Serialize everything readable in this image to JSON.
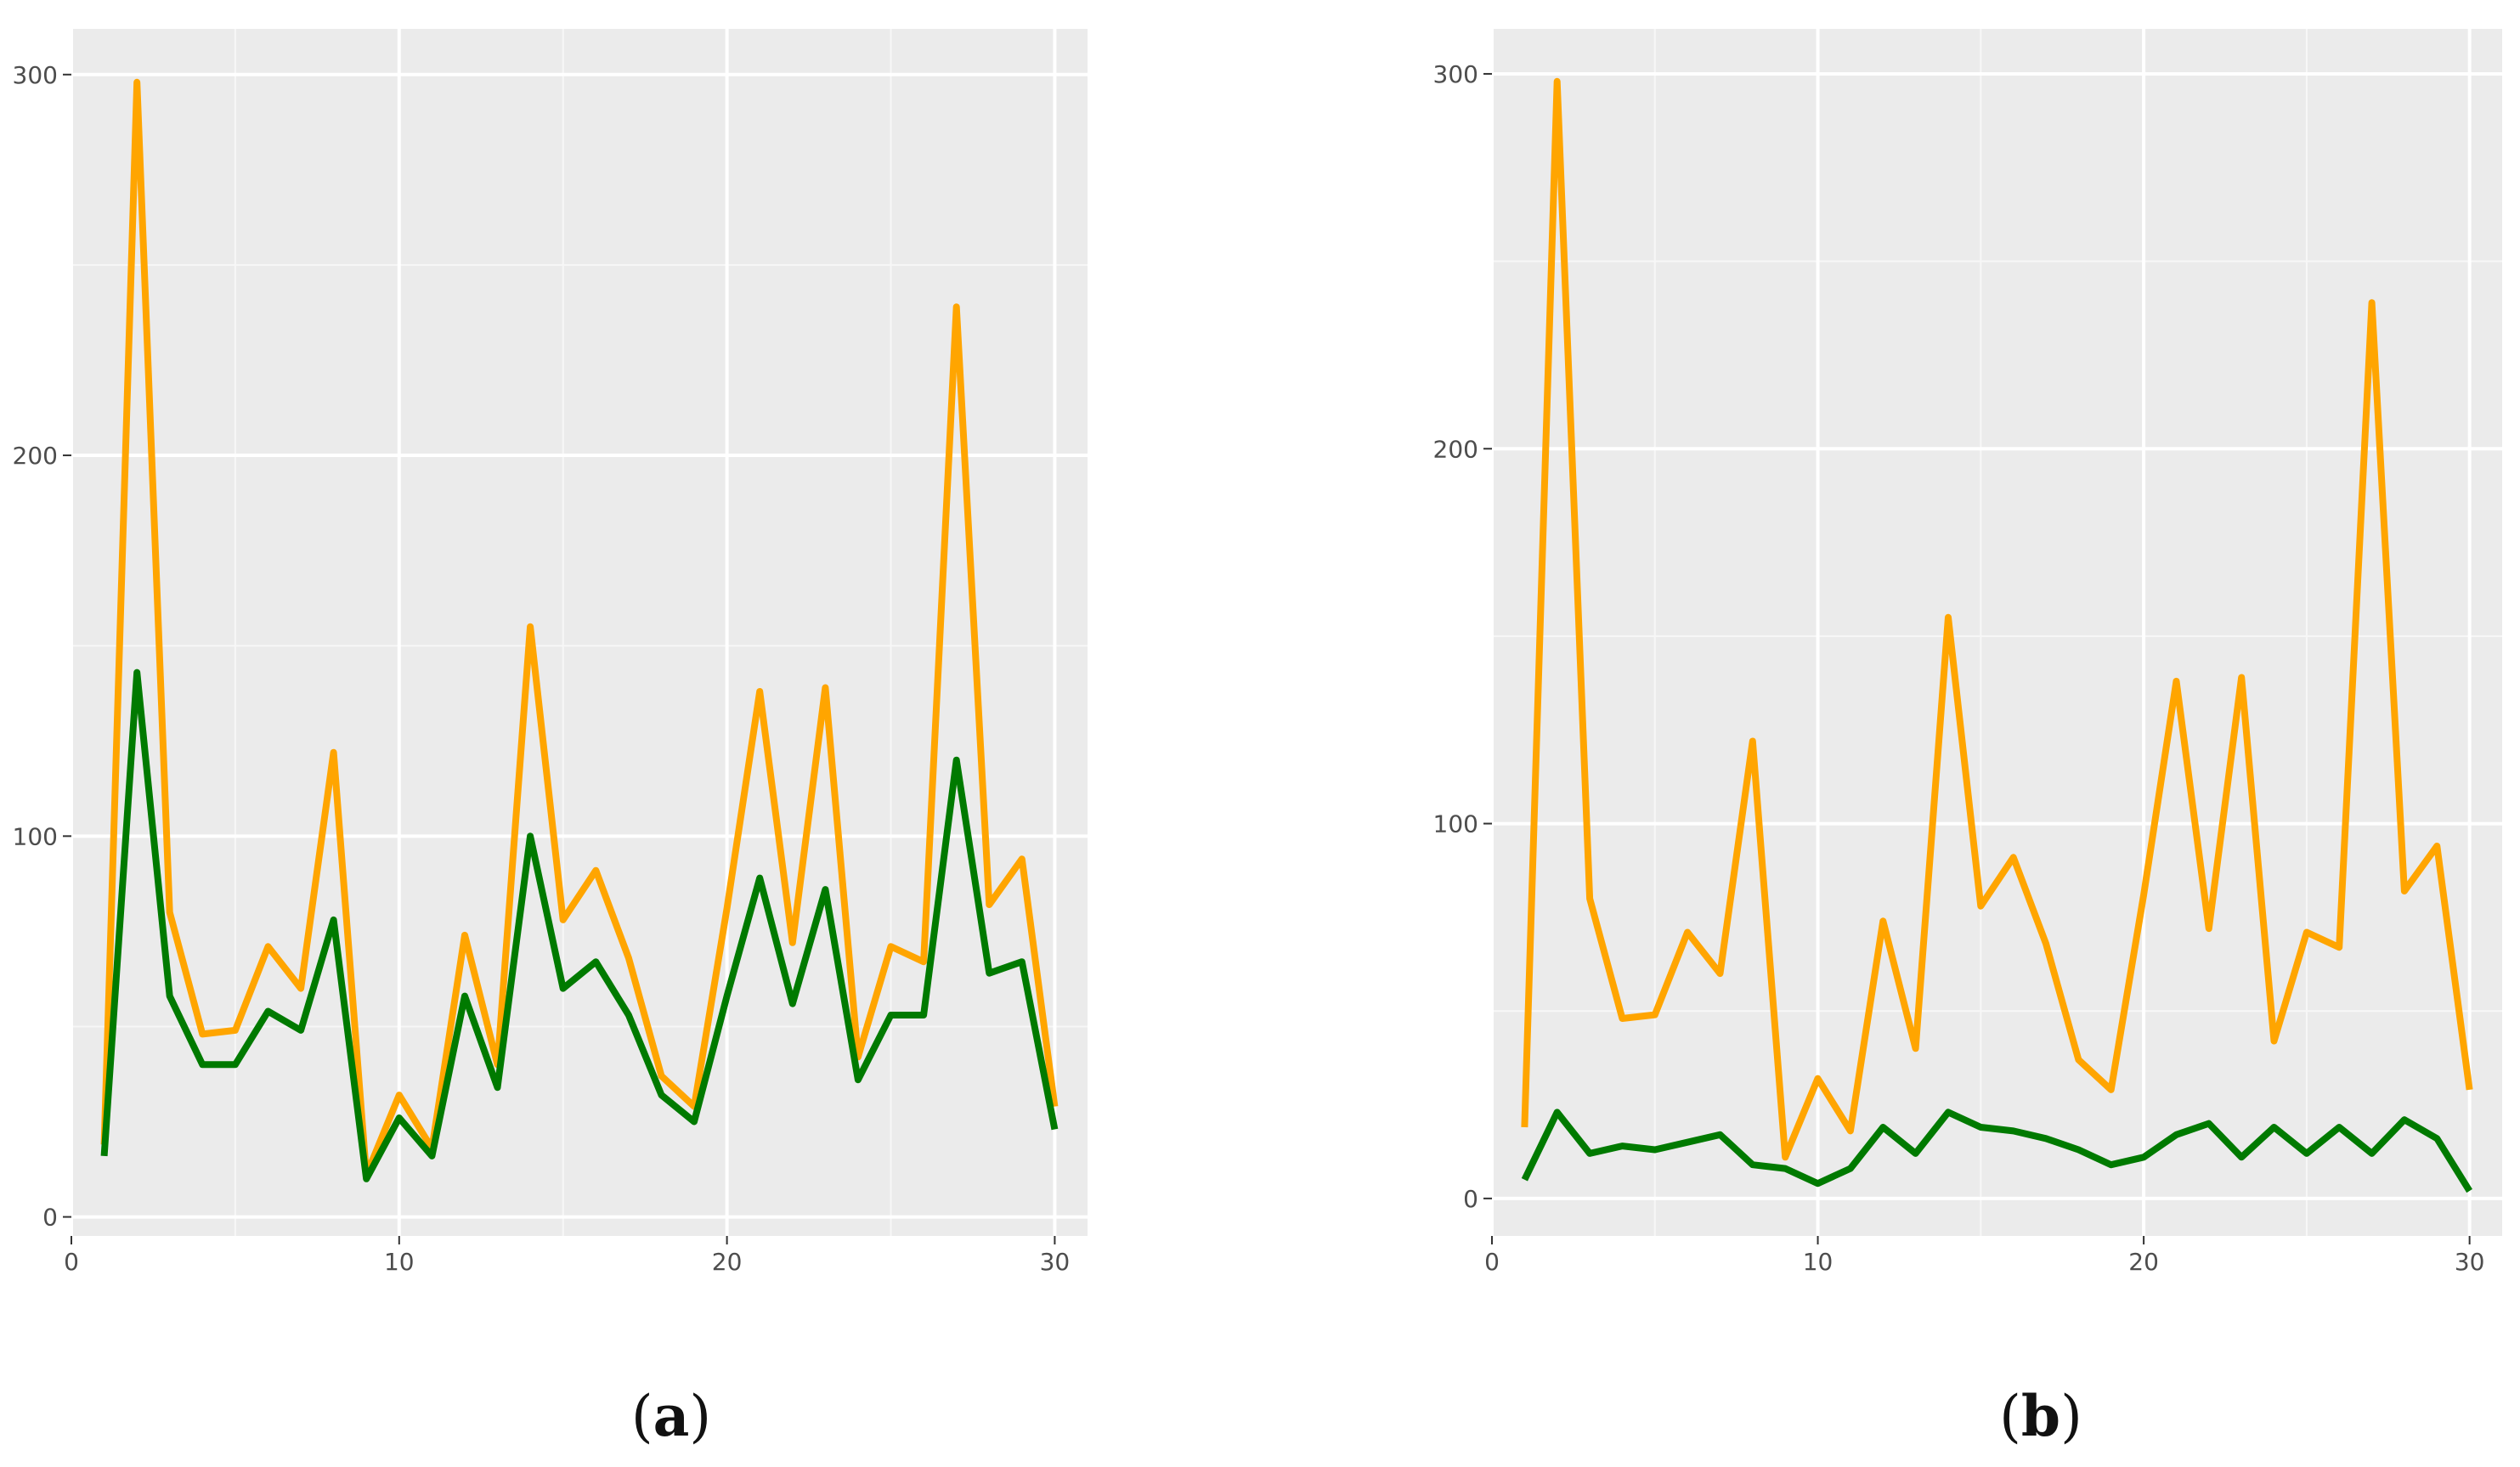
{
  "chart_data": [
    {
      "type": "line",
      "panel_label": "(a)",
      "panel_letter": "a",
      "x": [
        1,
        2,
        3,
        4,
        5,
        6,
        7,
        8,
        9,
        10,
        11,
        12,
        13,
        14,
        15,
        16,
        17,
        18,
        19,
        20,
        21,
        22,
        23,
        24,
        25,
        26,
        27,
        28,
        29,
        30
      ],
      "xlim": [
        0,
        31
      ],
      "ylim": [
        -5,
        312
      ],
      "xticks": [
        0,
        10,
        20,
        30
      ],
      "yticks": [
        0,
        100,
        200,
        300
      ],
      "grid": true,
      "legend": "none",
      "series": [
        {
          "color": "#FFA500",
          "values": [
            19,
            298,
            80,
            48,
            49,
            71,
            60,
            122,
            11,
            32,
            18,
            74,
            40,
            155,
            78,
            91,
            68,
            37,
            29,
            81,
            138,
            72,
            139,
            42,
            71,
            67,
            239,
            82,
            94,
            29
          ]
        },
        {
          "color": "#007A00",
          "values": [
            16,
            143,
            58,
            40,
            40,
            54,
            49,
            78,
            10,
            26,
            16,
            58,
            34,
            100,
            60,
            67,
            53,
            32,
            25,
            58,
            89,
            56,
            86,
            36,
            53,
            53,
            120,
            64,
            67,
            23
          ]
        }
      ]
    },
    {
      "type": "line",
      "panel_label": "(b)",
      "panel_letter": "b",
      "x": [
        1,
        2,
        3,
        4,
        5,
        6,
        7,
        8,
        9,
        10,
        11,
        12,
        13,
        14,
        15,
        16,
        17,
        18,
        19,
        20,
        21,
        22,
        23,
        24,
        25,
        26,
        27,
        28,
        29,
        30
      ],
      "xlim": [
        0,
        31
      ],
      "ylim": [
        -10,
        312
      ],
      "xticks": [
        0,
        10,
        20,
        30
      ],
      "yticks": [
        0,
        100,
        200,
        300
      ],
      "grid": true,
      "legend": "none",
      "series": [
        {
          "color": "#FFA500",
          "values": [
            19,
            298,
            80,
            48,
            49,
            71,
            60,
            122,
            11,
            32,
            18,
            74,
            40,
            155,
            78,
            91,
            68,
            37,
            29,
            81,
            138,
            72,
            139,
            42,
            71,
            67,
            239,
            82,
            94,
            29
          ]
        },
        {
          "color": "#007A00",
          "values": [
            5,
            23,
            12,
            14,
            13,
            15,
            17,
            9,
            8,
            4,
            8,
            19,
            12,
            23,
            19,
            18,
            16,
            13,
            9,
            11,
            17,
            20,
            11,
            19,
            12,
            19,
            12,
            21,
            16,
            2
          ]
        }
      ]
    }
  ]
}
